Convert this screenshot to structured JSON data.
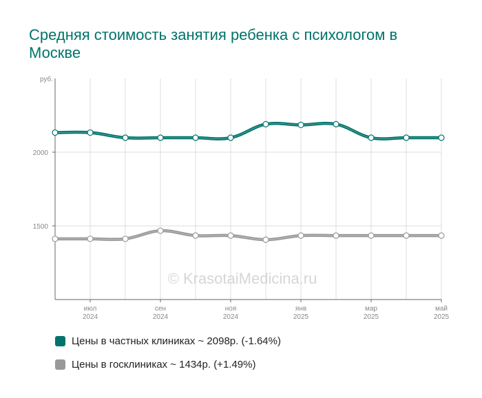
{
  "page": {
    "title": "Средняя стоимость занятия ребенка с психологом в Москве",
    "watermark": "© KrasotaiMedicina.ru"
  },
  "chart_data": {
    "type": "line",
    "title": "Средняя стоимость занятия ребенка с психологом в Москве",
    "ylabel": "руб.",
    "ylim": [
      1000,
      2500
    ],
    "yticks": [
      1500,
      2000
    ],
    "grid": true,
    "legend_position": "bottom-left",
    "x": [
      "2024-06",
      "2024-07",
      "2024-08",
      "2024-09",
      "2024-10",
      "2024-11",
      "2024-12",
      "2025-01",
      "2025-02",
      "2025-03",
      "2025-04",
      "2025-05"
    ],
    "xtick_labels": [
      {
        "index": 1,
        "month": "июл",
        "year": "2024"
      },
      {
        "index": 3,
        "month": "сен",
        "year": "2024"
      },
      {
        "index": 5,
        "month": "ноя",
        "year": "2024"
      },
      {
        "index": 7,
        "month": "янв",
        "year": "2025"
      },
      {
        "index": 9,
        "month": "мар",
        "year": "2025"
      },
      {
        "index": 11,
        "month": "май",
        "year": "2025"
      }
    ],
    "series": [
      {
        "name": "Цены в частных клиниках ~ 2098р. (-1.64%)",
        "color": "#00736b",
        "values": [
          2133,
          2133,
          2098,
          2098,
          2098,
          2098,
          2190,
          2185,
          2190,
          2098,
          2098,
          2098
        ]
      },
      {
        "name": "Цены в госклиниках ~ 1434р. (+1.49%)",
        "color": "#999999",
        "values": [
          1412,
          1412,
          1412,
          1467,
          1434,
          1434,
          1406,
          1434,
          1434,
          1434,
          1434,
          1434
        ]
      }
    ]
  }
}
